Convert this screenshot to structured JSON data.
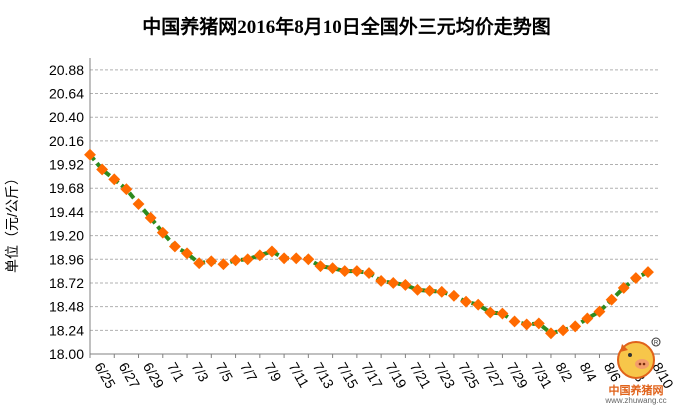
{
  "chart_data": {
    "type": "line",
    "title": "中国养猪网2016年8月10日全国外三元均价走势图",
    "ylabel": "单位（元/公斤）",
    "xlabel": "",
    "ylim": [
      18.0,
      21.0
    ],
    "yticks": [
      "18.00",
      "18.24",
      "18.48",
      "18.72",
      "18.96",
      "19.20",
      "19.44",
      "19.68",
      "19.92",
      "20.16",
      "20.40",
      "20.64",
      "20.88"
    ],
    "xticks": [
      "6/25",
      "6/27",
      "6/29",
      "7/1",
      "7/3",
      "7/5",
      "7/7",
      "7/9",
      "7/11",
      "7/13",
      "7/15",
      "7/17",
      "7/19",
      "7/21",
      "7/23",
      "7/25",
      "7/27",
      "7/29",
      "7/31",
      "8/2",
      "8/4",
      "8/6",
      "8/8",
      "8/10"
    ],
    "grid": true,
    "line_color": "#2e8b1e",
    "marker_color": "#ff6a00",
    "x": [
      "6/25",
      "6/26",
      "6/27",
      "6/28",
      "6/29",
      "6/30",
      "7/1",
      "7/2",
      "7/3",
      "7/4",
      "7/5",
      "7/6",
      "7/7",
      "7/8",
      "7/9",
      "7/10",
      "7/11",
      "7/12",
      "7/13",
      "7/14",
      "7/15",
      "7/16",
      "7/17",
      "7/18",
      "7/19",
      "7/20",
      "7/21",
      "7/22",
      "7/23",
      "7/24",
      "7/25",
      "7/26",
      "7/27",
      "7/28",
      "7/29",
      "7/30",
      "7/31",
      "8/1",
      "8/2",
      "8/3",
      "8/4",
      "8/5",
      "8/6",
      "8/7",
      "8/8",
      "8/9",
      "8/10"
    ],
    "values": [
      20.02,
      19.87,
      19.77,
      19.67,
      19.52,
      19.38,
      19.23,
      19.09,
      19.02,
      18.92,
      18.94,
      18.91,
      18.95,
      18.96,
      19.0,
      19.04,
      18.97,
      18.97,
      18.96,
      18.89,
      18.87,
      18.84,
      18.84,
      18.82,
      18.74,
      18.72,
      18.7,
      18.65,
      18.64,
      18.63,
      18.59,
      18.53,
      18.5,
      18.42,
      18.41,
      18.33,
      18.3,
      18.31,
      18.21,
      18.24,
      18.28,
      18.36,
      18.43,
      18.55,
      18.67,
      18.77,
      18.83
    ]
  },
  "logo": {
    "brand_text": "中国养猪网",
    "url_text": "www.zhuwang.cc"
  }
}
